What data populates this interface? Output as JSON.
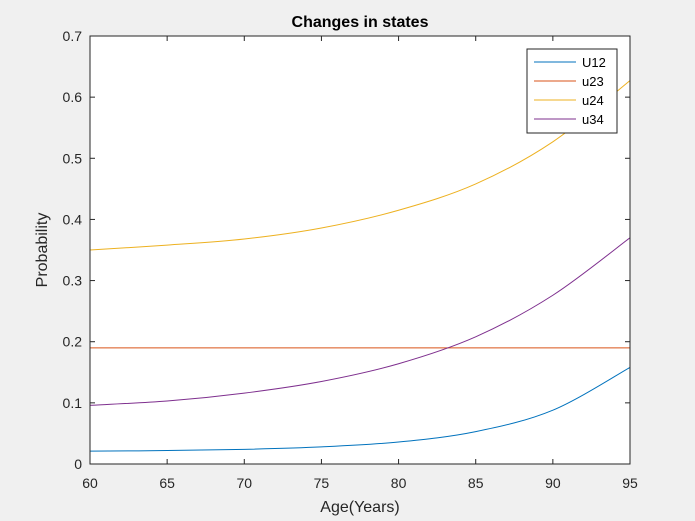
{
  "chart_data": {
    "type": "line",
    "title": "Changes in states",
    "xlabel": "Age(Years)",
    "ylabel": "Probability",
    "xlim": [
      60,
      95
    ],
    "ylim": [
      0,
      0.7
    ],
    "xticks": [
      "60",
      "65",
      "70",
      "75",
      "80",
      "85",
      "90",
      "95"
    ],
    "yticks": [
      "0",
      "0.1",
      "0.2",
      "0.3",
      "0.4",
      "0.5",
      "0.6",
      "0.7"
    ],
    "grid": false,
    "legend_position": "top-right",
    "x": [
      60,
      65,
      70,
      75,
      80,
      85,
      90,
      95
    ],
    "series": [
      {
        "name": "U12",
        "color": "#0072BD",
        "values": [
          0.021,
          0.022,
          0.024,
          0.028,
          0.036,
          0.053,
          0.088,
          0.158
        ]
      },
      {
        "name": "u23",
        "color": "#D95319",
        "values": [
          0.19,
          0.19,
          0.19,
          0.19,
          0.19,
          0.19,
          0.19,
          0.19
        ]
      },
      {
        "name": "u24",
        "color": "#EDB120",
        "values": [
          0.35,
          0.358,
          0.368,
          0.386,
          0.415,
          0.458,
          0.527,
          0.627
        ]
      },
      {
        "name": "u34",
        "color": "#7E2F8E",
        "values": [
          0.096,
          0.103,
          0.116,
          0.135,
          0.164,
          0.208,
          0.276,
          0.37
        ]
      }
    ]
  }
}
